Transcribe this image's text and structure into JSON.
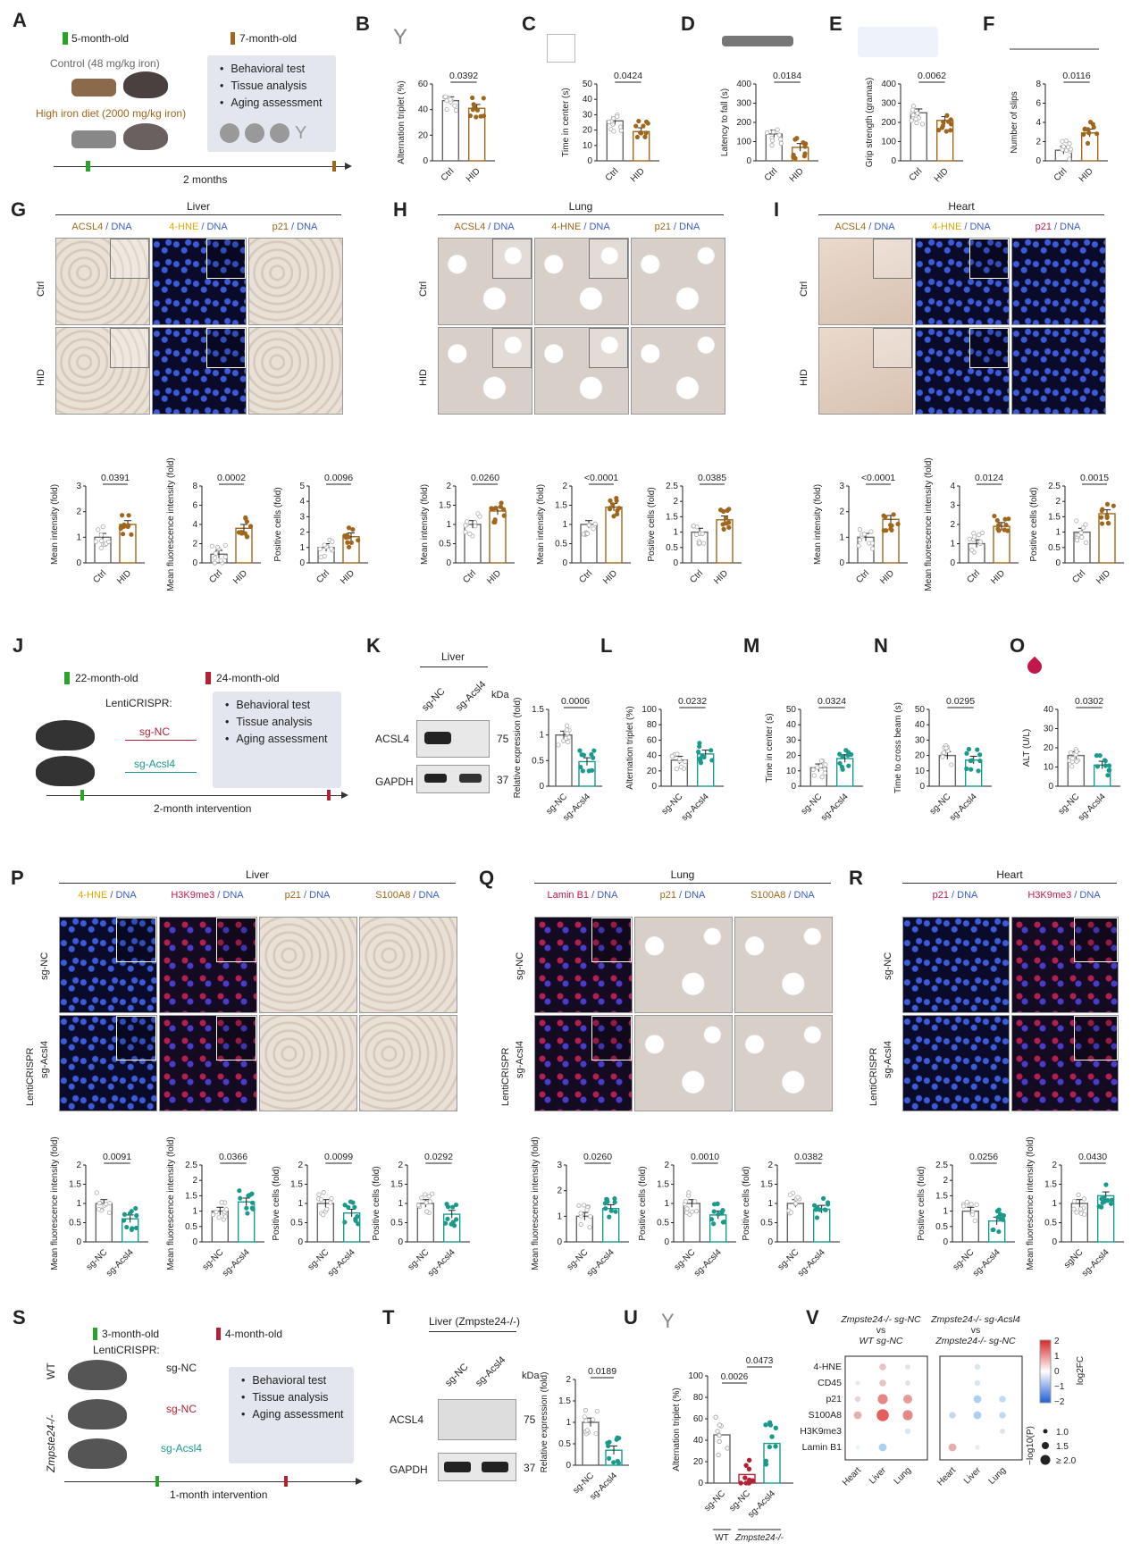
{
  "panels": {
    "A": {
      "letter": "A",
      "age_start": "5-month-old",
      "age_end": "7-month-old",
      "control": "Control (48 mg/kg iron)",
      "hid": "High iron diet (2000 mg/kg iron)",
      "duration": "2 months",
      "box": [
        "Behavioral test",
        "Tissue analysis",
        "Aging assessment"
      ]
    },
    "J": {
      "letter": "J",
      "age_start": "22-month-old",
      "age_end": "24-month-old",
      "vector": "LentiCRISPR:",
      "g1": "sg-NC",
      "g2": "sg-Acsl4",
      "duration": "2-month intervention",
      "box": [
        "Behavioral test",
        "Tissue analysis",
        "Aging assessment"
      ]
    },
    "K": {
      "letter": "K",
      "tissue": "Liver",
      "lanes": [
        "sg-NC",
        "sg-Acsl4"
      ],
      "kda": "kDa",
      "rows": [
        {
          "name": "ACSL4",
          "mw": "75"
        },
        {
          "name": "GAPDH",
          "mw": "37"
        }
      ]
    },
    "S": {
      "letter": "S",
      "age_start": "3-month-old",
      "age_end": "4-month-old",
      "vector": "LentiCRISPR:",
      "wt": "WT",
      "mut": "Zmpste24-/-",
      "g1": "sg-NC",
      "g2": "sg-NC",
      "g3": "sg-Acsl4",
      "duration": "1-month intervention",
      "box": [
        "Behavioral test",
        "Tissue analysis",
        "Aging assessment"
      ]
    },
    "T": {
      "letter": "T",
      "tissue": "Liver (Zmpste24-/-)",
      "lanes": [
        "sg-NC",
        "sg-Acsl4"
      ],
      "kda": "kDa",
      "rows": [
        {
          "name": "ACSL4",
          "mw": "75"
        },
        {
          "name": "GAPDH",
          "mw": "37"
        }
      ]
    },
    "G": {
      "letter": "G",
      "tissue": "Liver",
      "stains": [
        {
          "a": "ACSL4",
          "b": " / DNA",
          "ca": "#a0661b"
        },
        {
          "a": "4-HNE",
          "b": " / DNA",
          "ca": "#e0a800"
        },
        {
          "a": "p21",
          "b": " / DNA",
          "ca": "#a0661b"
        }
      ],
      "rows": [
        "Ctrl",
        "HID"
      ]
    },
    "H": {
      "letter": "H",
      "tissue": "Lung",
      "stains": [
        {
          "a": "ACSL4",
          "b": " / DNA",
          "ca": "#a0661b"
        },
        {
          "a": "4-HNE",
          "b": " / DNA",
          "ca": "#a0661b"
        },
        {
          "a": "p21",
          "b": " / DNA",
          "ca": "#a0661b"
        }
      ],
      "rows": [
        "Ctrl",
        "HID"
      ]
    },
    "I": {
      "letter": "I",
      "tissue": "Heart",
      "stains": [
        {
          "a": "ACSL4",
          "b": " / DNA",
          "ca": "#a0661b"
        },
        {
          "a": "4-HNE",
          "b": " / DNA",
          "ca": "#e0a800"
        },
        {
          "a": "p21",
          "b": " / DNA",
          "ca": "#c0184a"
        }
      ],
      "rows": [
        "Ctrl",
        "HID"
      ]
    },
    "P": {
      "letter": "P",
      "tissue": "Liver",
      "side": "LentiCRISPR",
      "stains": [
        {
          "a": "4-HNE",
          "b": " / DNA",
          "ca": "#e0a800"
        },
        {
          "a": "H3K9me3",
          "b": " / DNA",
          "ca": "#c0184a"
        },
        {
          "a": "p21",
          "b": " / DNA",
          "ca": "#a0661b"
        },
        {
          "a": "S100A8",
          "b": " / DNA",
          "ca": "#a0661b"
        }
      ],
      "rows": [
        "sg-NC",
        "sg-Acsl4"
      ]
    },
    "Q": {
      "letter": "Q",
      "tissue": "Lung",
      "side": "LentiCRISPR",
      "stains": [
        {
          "a": "Lamin B1",
          "b": " / DNA",
          "ca": "#c0184a"
        },
        {
          "a": "p21",
          "b": " / DNA",
          "ca": "#a0661b"
        },
        {
          "a": "S100A8",
          "b": " / DNA",
          "ca": "#a0661b"
        }
      ],
      "rows": [
        "sg-NC",
        "sg-Acsl4"
      ]
    },
    "R": {
      "letter": "R",
      "tissue": "Heart",
      "side": "LentiCRISPR",
      "stains": [
        {
          "a": "p21",
          "b": " / DNA",
          "ca": "#c0184a"
        },
        {
          "a": "H3K9me3",
          "b": " / DNA",
          "ca": "#c0184a"
        }
      ],
      "rows": [
        "sg-NC",
        "sg-Acsl4"
      ]
    },
    "V": {
      "letter": "V",
      "col1_title": [
        "Zmpste24-/- sg-NC",
        "vs",
        "WT sg-NC"
      ],
      "col2_title": [
        "Zmpste24-/- sg-Acsl4",
        "vs",
        "Zmpste24-/- sg-NC"
      ],
      "rows": [
        "4-HNE",
        "CD45",
        "p21",
        "S100A8",
        "H3K9me3",
        "Lamin B1"
      ],
      "cols": [
        "Heart",
        "Liver",
        "Lung"
      ],
      "color_label": "log2FC",
      "color_ticks": [
        "2",
        "1",
        "0",
        "−1",
        "−2"
      ],
      "size_label": "−log10(P)",
      "size_ticks": [
        "1.0",
        "1.5",
        "≥ 2.0"
      ]
    }
  },
  "chart_data": [
    {
      "id": "B",
      "type": "bar",
      "categories": [
        "Ctrl",
        "HID"
      ],
      "values": [
        47,
        41
      ],
      "ylabel": "Alternation triplet (%)",
      "ylim": [
        0,
        60
      ],
      "yticks": [
        0,
        20,
        40,
        60
      ],
      "pvalue": "0.0392",
      "color": "#a0661b"
    },
    {
      "id": "C",
      "type": "bar",
      "categories": [
        "Ctrl",
        "HID"
      ],
      "values": [
        26,
        19
      ],
      "ylabel": "Time in center (s)",
      "ylim": [
        0,
        50
      ],
      "yticks": [
        0,
        10,
        20,
        30,
        40,
        50
      ],
      "pvalue": "0.0424",
      "color": "#a0661b"
    },
    {
      "id": "D",
      "type": "bar",
      "categories": [
        "Ctrl",
        "HID"
      ],
      "values": [
        140,
        70
      ],
      "ylabel": "Latency to fall (s)",
      "ylim": [
        0,
        400
      ],
      "yticks": [
        0,
        100,
        200,
        300,
        400
      ],
      "pvalue": "0.0184",
      "color": "#a0661b"
    },
    {
      "id": "E",
      "type": "bar",
      "categories": [
        "Ctrl",
        "HID"
      ],
      "values": [
        250,
        210
      ],
      "ylabel": "Grip strength (gramas)",
      "ylim": [
        0,
        400
      ],
      "yticks": [
        0,
        100,
        200,
        300,
        400
      ],
      "pvalue": "0.0062",
      "color": "#a0661b"
    },
    {
      "id": "F",
      "type": "bar",
      "categories": [
        "Ctrl",
        "HID"
      ],
      "values": [
        1.1,
        2.9
      ],
      "ylabel": "Number of slips",
      "ylim": [
        0,
        8
      ],
      "yticks": [
        0,
        2,
        4,
        6,
        8
      ],
      "pvalue": "0.0116",
      "color": "#a0661b"
    },
    {
      "id": "G1",
      "type": "bar",
      "categories": [
        "Ctrl",
        "HID"
      ],
      "values": [
        1.0,
        1.5
      ],
      "ylabel": "Mean intensity (fold)",
      "ylim": [
        0,
        3
      ],
      "yticks": [
        0,
        1,
        2,
        3
      ],
      "pvalue": "0.0391",
      "color": "#a0661b"
    },
    {
      "id": "G2",
      "type": "bar",
      "categories": [
        "Ctrl",
        "HID"
      ],
      "values": [
        0.9,
        3.6
      ],
      "ylabel": "Mean fluorescence intensity (fold)",
      "ylim": [
        0,
        8
      ],
      "yticks": [
        0,
        2,
        4,
        6,
        8
      ],
      "pvalue": "0.0002",
      "color": "#a0661b"
    },
    {
      "id": "G3",
      "type": "bar",
      "categories": [
        "Ctrl",
        "HID"
      ],
      "values": [
        1.0,
        1.7
      ],
      "ylabel": "Positive cells (fold)",
      "ylim": [
        0,
        5
      ],
      "yticks": [
        0,
        1,
        2,
        3,
        4,
        5
      ],
      "pvalue": "0.0096",
      "color": "#a0661b"
    },
    {
      "id": "H1",
      "type": "bar",
      "categories": [
        "Ctrl",
        "HID"
      ],
      "values": [
        1.0,
        1.35
      ],
      "ylabel": "Mean intensity (fold)",
      "ylim": [
        0,
        2.0
      ],
      "yticks": [
        0,
        0.5,
        1.0,
        1.5,
        2.0
      ],
      "pvalue": "0.0260",
      "color": "#a0661b"
    },
    {
      "id": "H2",
      "type": "bar",
      "categories": [
        "Ctrl",
        "HID"
      ],
      "values": [
        1.0,
        1.45
      ],
      "ylabel": "Mean intensity (fold)",
      "ylim": [
        0,
        2.0
      ],
      "yticks": [
        0,
        0.5,
        1.0,
        1.5,
        2.0
      ],
      "pvalue": "<0.0001",
      "color": "#a0661b"
    },
    {
      "id": "H3",
      "type": "bar",
      "categories": [
        "Ctrl",
        "HID"
      ],
      "values": [
        1.0,
        1.4
      ],
      "ylabel": "Positive cells (fold)",
      "ylim": [
        0,
        2.5
      ],
      "yticks": [
        0,
        0.5,
        1.0,
        1.5,
        2.0,
        2.5
      ],
      "pvalue": "0.0385",
      "color": "#a0661b"
    },
    {
      "id": "I1",
      "type": "bar",
      "categories": [
        "Ctrl",
        "HID"
      ],
      "values": [
        1.0,
        1.7
      ],
      "ylabel": "Mean intensity (fold)",
      "ylim": [
        0,
        3
      ],
      "yticks": [
        0,
        1,
        2,
        3
      ],
      "pvalue": "<0.0001",
      "color": "#a0661b"
    },
    {
      "id": "I2",
      "type": "bar",
      "categories": [
        "Ctrl",
        "HID"
      ],
      "values": [
        1.0,
        1.9
      ],
      "ylabel": "Mean fluorescence intensity (fold)",
      "ylim": [
        0,
        4
      ],
      "yticks": [
        0,
        1,
        2,
        3,
        4
      ],
      "pvalue": "0.0124",
      "color": "#a0661b"
    },
    {
      "id": "I3",
      "type": "bar",
      "categories": [
        "Ctrl",
        "HID"
      ],
      "values": [
        1.0,
        1.6
      ],
      "ylabel": "Positive cells (fold)",
      "ylim": [
        0,
        2.5
      ],
      "yticks": [
        0,
        0.5,
        1.0,
        1.5,
        2.0,
        2.5
      ],
      "pvalue": "0.0015",
      "color": "#a0661b"
    },
    {
      "id": "Kq",
      "type": "bar",
      "categories": [
        "sg-NC",
        "sg-Acsl4"
      ],
      "values": [
        1.0,
        0.48
      ],
      "ylabel": "Relative expression (fold)",
      "ylim": [
        0,
        1.5
      ],
      "yticks": [
        0,
        0.5,
        1.0,
        1.5
      ],
      "pvalue": "0.0006",
      "color": "#1a9a8a"
    },
    {
      "id": "L",
      "type": "bar",
      "categories": [
        "sg-NC",
        "sg-Acsl4"
      ],
      "values": [
        34,
        42
      ],
      "ylabel": "Alternation triplet (%)",
      "ylim": [
        0,
        100
      ],
      "yticks": [
        0,
        20,
        40,
        60,
        80,
        100
      ],
      "pvalue": "0.0232",
      "color": "#1a9a8a"
    },
    {
      "id": "M",
      "type": "bar",
      "categories": [
        "sg-NC",
        "sg-Acsl4"
      ],
      "values": [
        12,
        18
      ],
      "ylabel": "Time in center (s)",
      "ylim": [
        0,
        50
      ],
      "yticks": [
        0,
        10,
        20,
        30,
        40,
        50
      ],
      "pvalue": "0.0324",
      "color": "#1a9a8a"
    },
    {
      "id": "N",
      "type": "bar",
      "categories": [
        "sg-NC",
        "sg-Acsl4"
      ],
      "values": [
        20,
        17
      ],
      "ylabel": "Time to cross beam (s)",
      "ylim": [
        0,
        50
      ],
      "yticks": [
        0,
        10,
        20,
        30,
        40,
        50
      ],
      "pvalue": "0.0295",
      "color": "#1a9a8a"
    },
    {
      "id": "O",
      "type": "bar",
      "categories": [
        "sg-NC",
        "sg-Acsl4"
      ],
      "values": [
        16,
        11
      ],
      "ylabel": "ALT (U/L)",
      "ylim": [
        0,
        40
      ],
      "yticks": [
        0,
        10,
        20,
        30,
        40
      ],
      "pvalue": "0.0302",
      "color": "#1a9a8a"
    },
    {
      "id": "P1",
      "type": "bar",
      "categories": [
        "sg-NC",
        "sg-Acsl4"
      ],
      "values": [
        1.0,
        0.6
      ],
      "ylabel": "Mean fluorescence intensity (fold)",
      "ylim": [
        0,
        2.0
      ],
      "yticks": [
        0,
        0.5,
        1.0,
        1.5,
        2.0
      ],
      "pvalue": "0.0091",
      "color": "#1a9a8a"
    },
    {
      "id": "P2",
      "type": "bar",
      "categories": [
        "sg-NC",
        "sg-Acsl4"
      ],
      "values": [
        1.0,
        1.3
      ],
      "ylabel": "Mean fluorescence intensity (fold)",
      "ylim": [
        0,
        2.5
      ],
      "yticks": [
        0,
        0.5,
        1.0,
        1.5,
        2.0,
        2.5
      ],
      "pvalue": "0.0366",
      "color": "#1a9a8a"
    },
    {
      "id": "P3",
      "type": "bar",
      "categories": [
        "sg-NC",
        "sg-Acsl4"
      ],
      "values": [
        1.0,
        0.75
      ],
      "ylabel": "Positive cells (fold)",
      "ylim": [
        0,
        2.0
      ],
      "yticks": [
        0,
        0.5,
        1.0,
        1.5,
        2.0
      ],
      "pvalue": "0.0099",
      "color": "#1a9a8a"
    },
    {
      "id": "P4",
      "type": "bar",
      "categories": [
        "sg-NC",
        "sg-Acsl4"
      ],
      "values": [
        1.0,
        0.72
      ],
      "ylabel": "Positive cells (fold)",
      "ylim": [
        0,
        2.0
      ],
      "yticks": [
        0,
        0.5,
        1.0,
        1.5,
        2.0
      ],
      "pvalue": "0.0292",
      "color": "#1a9a8a"
    },
    {
      "id": "Q1",
      "type": "bar",
      "categories": [
        "sg-NC",
        "sg-Acsl4"
      ],
      "values": [
        1.0,
        1.3
      ],
      "ylabel": "Mean fluorescence intensity (fold)",
      "ylim": [
        0,
        3
      ],
      "yticks": [
        0,
        1,
        2,
        3
      ],
      "pvalue": "0.0260",
      "color": "#1a9a8a"
    },
    {
      "id": "Q2",
      "type": "bar",
      "categories": [
        "sg-NC",
        "sg-Acsl4"
      ],
      "values": [
        1.0,
        0.7
      ],
      "ylabel": "Positive cells (fold)",
      "ylim": [
        0,
        2.0
      ],
      "yticks": [
        0,
        0.5,
        1.0,
        1.5,
        2.0
      ],
      "pvalue": "0.0010",
      "color": "#1a9a8a"
    },
    {
      "id": "Q3",
      "type": "bar",
      "categories": [
        "sg-NC",
        "sg-Acsl4"
      ],
      "values": [
        1.0,
        0.85
      ],
      "ylabel": "Positive cells (fold)",
      "ylim": [
        0,
        2.0
      ],
      "yticks": [
        0,
        0.5,
        1.0,
        1.5,
        2.0
      ],
      "pvalue": "0.0382",
      "color": "#1a9a8a"
    },
    {
      "id": "R1",
      "type": "bar",
      "categories": [
        "sg-NC",
        "sg-Acsl4"
      ],
      "values": [
        1.0,
        0.68
      ],
      "ylabel": "Positive cells (fold)",
      "ylim": [
        0,
        2.5
      ],
      "yticks": [
        0,
        0.5,
        1.0,
        1.5,
        2.0,
        2.5
      ],
      "pvalue": "0.0256",
      "color": "#1a9a8a"
    },
    {
      "id": "R2",
      "type": "bar",
      "categories": [
        "sgNC",
        "sg-Acsl4"
      ],
      "values": [
        1.0,
        1.2
      ],
      "ylabel": "Mean fluorescence intensity (fold)",
      "ylim": [
        0,
        2.0
      ],
      "yticks": [
        0,
        0.5,
        1.0,
        1.5,
        2.0
      ],
      "pvalue": "0.0430",
      "color": "#1a9a8a"
    },
    {
      "id": "Tq",
      "type": "bar",
      "categories": [
        "sg-NC",
        "sg-Acsl4"
      ],
      "values": [
        1.0,
        0.35
      ],
      "ylabel": "Relative expression (fold)",
      "ylim": [
        0,
        2.0
      ],
      "yticks": [
        0,
        0.5,
        1.0,
        1.5,
        2.0
      ],
      "pvalue": "0.0189",
      "color": "#1a9a8a"
    },
    {
      "id": "U",
      "type": "bar",
      "categories": [
        "sg-NC",
        "sg-NC",
        "sg-Acsl4"
      ],
      "values": [
        45,
        8,
        37
      ],
      "colors": [
        "#ffffff",
        "#b22234",
        "#1a9a8a"
      ],
      "ylabel": "Alternation triplet (%)",
      "ylim": [
        0,
        100
      ],
      "yticks": [
        0,
        20,
        40,
        60,
        80,
        100
      ],
      "pvalue": "0.0026",
      "pvalue2": "0.0473",
      "group_labels": [
        "WT",
        "Zmpste24-/-"
      ]
    },
    {
      "id": "Vdots",
      "type": "scatter",
      "rows": [
        "4-HNE",
        "CD45",
        "p21",
        "S100A8",
        "H3K9me3",
        "Lamin B1"
      ],
      "cols": [
        "Heart",
        "Liver",
        "Lung"
      ],
      "left": [
        [
          0,
          0.6,
          0.3
        ],
        [
          0.2,
          0.6,
          0.3
        ],
        [
          0.4,
          1.2,
          1.0
        ],
        [
          0.8,
          1.6,
          1.2
        ],
        [
          0,
          0,
          -0.4
        ],
        [
          0.1,
          -0.8,
          0
        ]
      ],
      "right": [
        [
          0,
          -0.4,
          0
        ],
        [
          0,
          -0.4,
          0
        ],
        [
          0,
          -0.8,
          -0.6
        ],
        [
          -0.6,
          -0.8,
          -0.6
        ],
        [
          0,
          0,
          0.3
        ],
        [
          0.8,
          0.2,
          0
        ]
      ]
    }
  ]
}
